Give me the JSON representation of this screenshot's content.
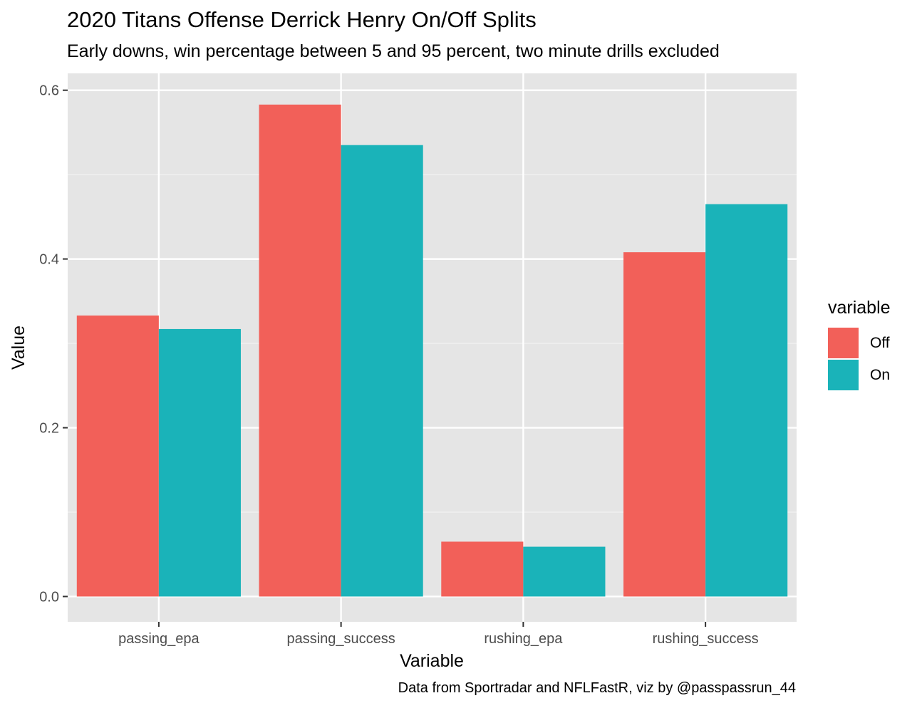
{
  "chart_data": {
    "type": "bar",
    "title": "2020 Titans Offense Derrick Henry On/Off Splits",
    "subtitle": "Early downs, win percentage between 5 and 95 percent, two minute drills excluded",
    "caption": "Data from Sportradar and NFLFastR, viz by @passpassrun_44",
    "xlabel": "Variable",
    "ylabel": "Value",
    "categories": [
      "passing_epa",
      "passing_success",
      "rushing_epa",
      "rushing_success"
    ],
    "series": [
      {
        "name": "Off",
        "color": "#F26059",
        "values": [
          0.333,
          0.583,
          0.065,
          0.408
        ]
      },
      {
        "name": "On",
        "color": "#1AB3B9",
        "values": [
          0.317,
          0.535,
          0.059,
          0.465
        ]
      }
    ],
    "ylim": [
      -0.03,
      0.62
    ],
    "yticks": [
      0.0,
      0.2,
      0.4,
      0.6
    ],
    "ytick_labels": [
      "0.0",
      "0.2",
      "0.4",
      "0.6"
    ],
    "legend_title": "variable",
    "legend_position": "right",
    "grid": true,
    "panel_color": "#E5E5E5"
  }
}
